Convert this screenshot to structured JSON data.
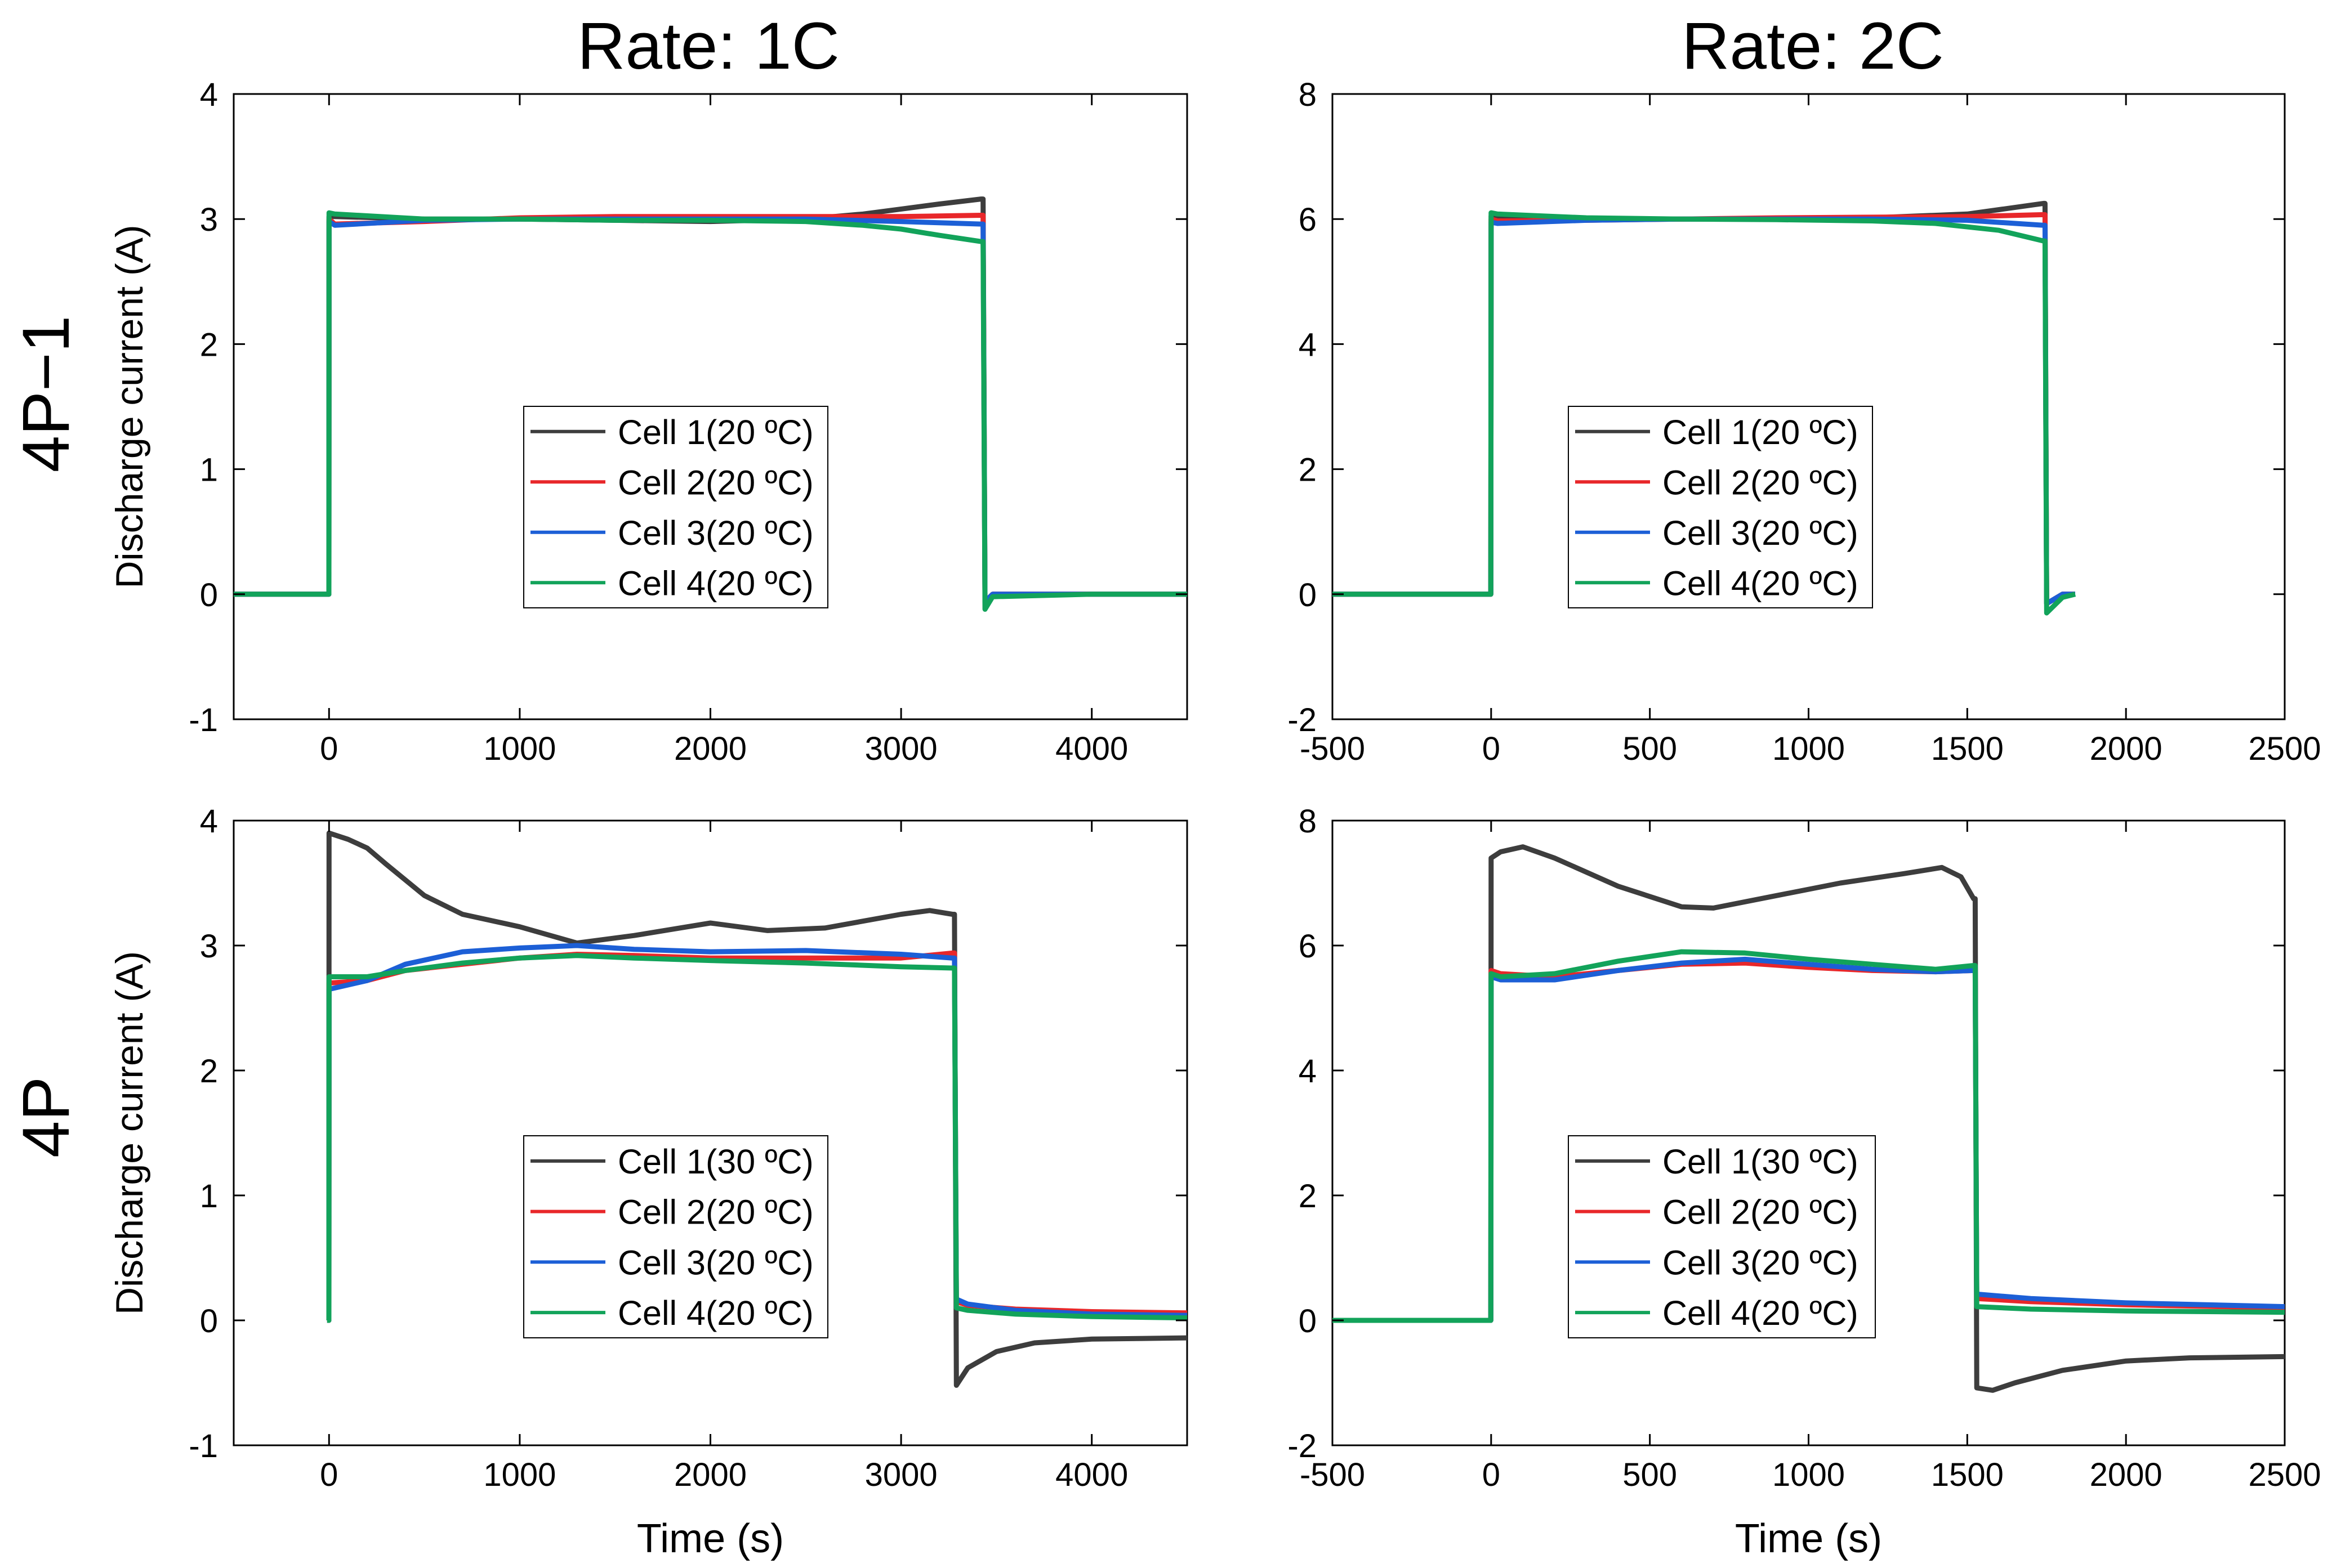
{
  "figure": {
    "col_titles": [
      "Rate: 1C",
      "Rate: 2C"
    ],
    "row_titles": [
      "4P−1",
      "4P"
    ]
  },
  "colors": {
    "Cell 1": "#3d3d3d",
    "Cell 2": "#e8272a",
    "Cell 3": "#1c5fd6",
    "Cell 4": "#12a35a"
  },
  "chart_data": [
    {
      "id": "p11",
      "type": "line",
      "xlabel": "",
      "ylabel": "Discharge current (A)",
      "xlim": [
        -500,
        4500
      ],
      "ylim": [
        -1,
        4
      ],
      "xticks": [
        0,
        1000,
        2000,
        3000,
        4000
      ],
      "yticks": [
        -1,
        0,
        1,
        2,
        3,
        4
      ],
      "legend_position": "center",
      "series": [
        {
          "name": "Cell 1(20 ºC)",
          "color": "#3d3d3d",
          "x": [
            -500,
            -1,
            0,
            30,
            500,
            1000,
            1500,
            2000,
            2500,
            2800,
            3000,
            3200,
            3420,
            3430,
            3440,
            3480,
            4000,
            4500
          ],
          "y": [
            0,
            0,
            3.02,
            3.02,
            3.0,
            3.0,
            2.99,
            2.98,
            3.0,
            3.04,
            3.08,
            3.12,
            3.16,
            3.16,
            -0.06,
            0,
            0,
            0
          ]
        },
        {
          "name": "Cell 2(20 ºC)",
          "color": "#e8272a",
          "x": [
            -500,
            -1,
            0,
            30,
            500,
            1000,
            1500,
            2000,
            2500,
            3000,
            3420,
            3430,
            3440,
            3480,
            4000,
            4500
          ],
          "y": [
            0,
            0,
            3.0,
            2.96,
            2.98,
            3.01,
            3.02,
            3.02,
            3.02,
            3.02,
            3.03,
            3.03,
            -0.06,
            0,
            0,
            0
          ]
        },
        {
          "name": "Cell 3(20 ºC)",
          "color": "#1c5fd6",
          "x": [
            -500,
            -1,
            0,
            30,
            500,
            1000,
            1500,
            2000,
            2500,
            3000,
            3420,
            3430,
            3440,
            3480,
            4000,
            4500
          ],
          "y": [
            0,
            0,
            2.98,
            2.95,
            2.99,
            3.0,
            3.0,
            3.0,
            3.0,
            2.98,
            2.96,
            2.96,
            -0.06,
            0,
            0,
            0
          ]
        },
        {
          "name": "Cell 4(20 ºC)",
          "color": "#12a35a",
          "x": [
            -500,
            -1,
            0,
            30,
            500,
            1000,
            1500,
            2000,
            2500,
            2800,
            3000,
            3200,
            3420,
            3430,
            3440,
            3480,
            4000,
            4500
          ],
          "y": [
            0,
            0,
            3.05,
            3.04,
            3.0,
            3.0,
            2.99,
            2.99,
            2.98,
            2.95,
            2.92,
            2.87,
            2.82,
            2.82,
            -0.12,
            -0.02,
            0,
            0
          ]
        }
      ]
    },
    {
      "id": "p12",
      "type": "line",
      "xlabel": "",
      "ylabel": "",
      "xlim": [
        -500,
        2500
      ],
      "ylim": [
        -2,
        8
      ],
      "xticks": [
        -500,
        0,
        500,
        1000,
        1500,
        2000,
        2500
      ],
      "yticks": [
        -2,
        0,
        2,
        4,
        6,
        8
      ],
      "legend_position": "center",
      "series": [
        {
          "name": "Cell 1(20 ºC)",
          "color": "#3d3d3d",
          "x": [
            -500,
            -1,
            0,
            20,
            300,
            600,
            900,
            1200,
            1500,
            1600,
            1740,
            1745,
            1750,
            1800,
            1840
          ],
          "y": [
            0,
            0,
            6.05,
            6.02,
            6.0,
            6.0,
            6.0,
            6.02,
            6.08,
            6.15,
            6.25,
            6.25,
            -0.15,
            0,
            0
          ]
        },
        {
          "name": "Cell 2(20 ºC)",
          "color": "#e8272a",
          "x": [
            -500,
            -1,
            0,
            20,
            300,
            600,
            900,
            1200,
            1500,
            1740,
            1745,
            1750,
            1800,
            1840
          ],
          "y": [
            0,
            0,
            6.0,
            5.97,
            5.98,
            6.0,
            6.02,
            6.03,
            6.04,
            6.07,
            6.07,
            -0.15,
            0,
            0
          ]
        },
        {
          "name": "Cell 3(20 ºC)",
          "color": "#1c5fd6",
          "x": [
            -500,
            -1,
            0,
            20,
            300,
            600,
            900,
            1200,
            1500,
            1740,
            1745,
            1750,
            1800,
            1840
          ],
          "y": [
            0,
            0,
            5.95,
            5.93,
            5.98,
            6.0,
            6.0,
            6.0,
            5.98,
            5.9,
            5.9,
            -0.15,
            0,
            0
          ]
        },
        {
          "name": "Cell 4(20 ºC)",
          "color": "#12a35a",
          "x": [
            -500,
            -1,
            0,
            20,
            300,
            600,
            900,
            1200,
            1400,
            1600,
            1740,
            1745,
            1750,
            1800,
            1840
          ],
          "y": [
            0,
            0,
            6.1,
            6.08,
            6.02,
            6.0,
            5.99,
            5.97,
            5.93,
            5.82,
            5.65,
            5.65,
            -0.3,
            -0.05,
            0
          ]
        }
      ]
    },
    {
      "id": "p21",
      "type": "line",
      "xlabel": "Time (s)",
      "ylabel": "Discharge current (A)",
      "xlim": [
        -500,
        4500
      ],
      "ylim": [
        -1,
        4
      ],
      "xticks": [
        0,
        1000,
        2000,
        3000,
        4000
      ],
      "yticks": [
        -1,
        0,
        1,
        2,
        3,
        4
      ],
      "legend_position": "center",
      "series": [
        {
          "name": "Cell 1(30 ºC)",
          "color": "#3d3d3d",
          "x": [
            -10,
            -1,
            0,
            100,
            200,
            300,
            500,
            700,
            1000,
            1300,
            1600,
            2000,
            2300,
            2600,
            3000,
            3150,
            3270,
            3280,
            3290,
            3350,
            3500,
            3700,
            4000,
            4500
          ],
          "y": [
            0,
            0,
            3.9,
            3.85,
            3.78,
            3.65,
            3.4,
            3.25,
            3.15,
            3.02,
            3.08,
            3.18,
            3.12,
            3.14,
            3.25,
            3.28,
            3.25,
            3.25,
            -0.52,
            -0.38,
            -0.25,
            -0.18,
            -0.15,
            -0.14
          ]
        },
        {
          "name": "Cell 2(20 ºC)",
          "color": "#e8272a",
          "x": [
            -10,
            -1,
            0,
            200,
            400,
            700,
            1000,
            1300,
            1600,
            2000,
            2500,
            3000,
            3270,
            3280,
            3290,
            3350,
            3600,
            4000,
            4500
          ],
          "y": [
            0,
            0,
            2.7,
            2.72,
            2.8,
            2.85,
            2.9,
            2.93,
            2.92,
            2.9,
            2.9,
            2.9,
            2.94,
            2.94,
            0.15,
            0.12,
            0.09,
            0.07,
            0.06
          ]
        },
        {
          "name": "Cell 3(20 ºC)",
          "color": "#1c5fd6",
          "x": [
            -10,
            -1,
            0,
            200,
            400,
            700,
            1000,
            1300,
            1600,
            2000,
            2500,
            3000,
            3270,
            3280,
            3290,
            3350,
            3600,
            4000,
            4500
          ],
          "y": [
            0,
            0,
            2.65,
            2.72,
            2.85,
            2.95,
            2.98,
            3.0,
            2.97,
            2.95,
            2.96,
            2.93,
            2.9,
            2.9,
            0.17,
            0.13,
            0.08,
            0.05,
            0.04
          ]
        },
        {
          "name": "Cell 4(20 ºC)",
          "color": "#12a35a",
          "x": [
            -10,
            -1,
            0,
            200,
            400,
            700,
            1000,
            1300,
            1600,
            2000,
            2500,
            3000,
            3270,
            3280,
            3290,
            3350,
            3600,
            4000,
            4500
          ],
          "y": [
            0,
            0,
            2.75,
            2.75,
            2.8,
            2.86,
            2.9,
            2.92,
            2.9,
            2.88,
            2.86,
            2.83,
            2.82,
            2.82,
            0.1,
            0.08,
            0.05,
            0.03,
            0.02
          ]
        }
      ]
    },
    {
      "id": "p22",
      "type": "line",
      "xlabel": "Time (s)",
      "ylabel": "",
      "xlim": [
        -500,
        2500
      ],
      "ylim": [
        -2,
        8
      ],
      "xticks": [
        -500,
        0,
        500,
        1000,
        1500,
        2000,
        2500
      ],
      "yticks": [
        -2,
        0,
        2,
        4,
        6,
        8
      ],
      "legend_position": "center",
      "series": [
        {
          "name": "Cell 1(30 ºC)",
          "color": "#3d3d3d",
          "x": [
            -500,
            -1,
            0,
            30,
            100,
            200,
            400,
            600,
            700,
            900,
            1100,
            1300,
            1420,
            1480,
            1520,
            1525,
            1530,
            1580,
            1650,
            1800,
            2000,
            2200,
            2500
          ],
          "y": [
            0,
            0,
            7.4,
            7.5,
            7.58,
            7.4,
            6.95,
            6.62,
            6.6,
            6.8,
            7.0,
            7.15,
            7.25,
            7.1,
            6.75,
            6.75,
            -1.08,
            -1.12,
            -1.0,
            -0.8,
            -0.65,
            -0.6,
            -0.58
          ]
        },
        {
          "name": "Cell 2(20 ºC)",
          "color": "#e8272a",
          "x": [
            -500,
            -1,
            0,
            30,
            200,
            400,
            600,
            800,
            1000,
            1200,
            1400,
            1520,
            1525,
            1530,
            1700,
            2000,
            2500
          ],
          "y": [
            0,
            0,
            5.6,
            5.55,
            5.5,
            5.6,
            5.7,
            5.72,
            5.65,
            5.6,
            5.58,
            5.6,
            5.6,
            0.35,
            0.3,
            0.25,
            0.2
          ]
        },
        {
          "name": "Cell 3(20 ºC)",
          "color": "#1c5fd6",
          "x": [
            -500,
            -1,
            0,
            30,
            200,
            400,
            600,
            800,
            1000,
            1200,
            1400,
            1520,
            1525,
            1530,
            1700,
            2000,
            2500
          ],
          "y": [
            0,
            0,
            5.5,
            5.45,
            5.45,
            5.6,
            5.72,
            5.78,
            5.7,
            5.62,
            5.58,
            5.6,
            5.6,
            0.42,
            0.35,
            0.28,
            0.22
          ]
        },
        {
          "name": "Cell 4(20 ºC)",
          "color": "#12a35a",
          "x": [
            -500,
            -1,
            0,
            30,
            200,
            400,
            600,
            800,
            1000,
            1200,
            1400,
            1520,
            1525,
            1530,
            1700,
            2000,
            2500
          ],
          "y": [
            0,
            0,
            5.55,
            5.5,
            5.55,
            5.75,
            5.9,
            5.88,
            5.78,
            5.7,
            5.62,
            5.68,
            5.68,
            0.22,
            0.18,
            0.15,
            0.13
          ]
        }
      ]
    }
  ]
}
